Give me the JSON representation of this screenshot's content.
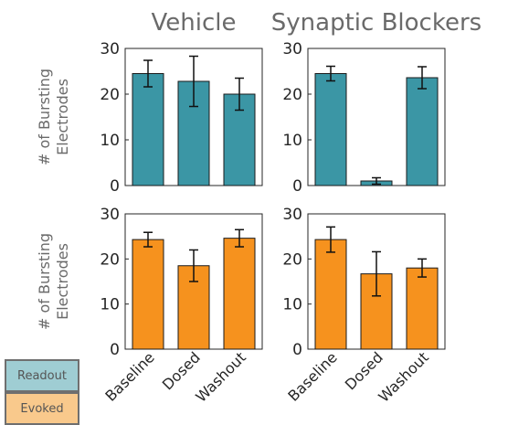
{
  "chart_data": {
    "type": "bar",
    "categories": [
      "Baseline",
      "Dosed",
      "Washout"
    ],
    "columns": [
      "Vehicle",
      "Synaptic Blockers"
    ],
    "ylabel": [
      "# of Bursting",
      "Electrodes"
    ],
    "ylim": [
      0,
      30
    ],
    "yticks": [
      0,
      10,
      20,
      30
    ],
    "rows": [
      {
        "name": "Readout",
        "color": "#3b96a5"
      },
      {
        "name": "Evoked",
        "color": "#f6921e"
      }
    ],
    "panels": [
      {
        "row": 0,
        "col": 0,
        "values": [
          24.5,
          22.8,
          20.0
        ],
        "errors": [
          2.9,
          5.5,
          3.5
        ]
      },
      {
        "row": 0,
        "col": 1,
        "values": [
          24.5,
          1.0,
          23.6
        ],
        "errors": [
          1.6,
          0.7,
          2.4
        ]
      },
      {
        "row": 1,
        "col": 0,
        "values": [
          24.3,
          18.5,
          24.6
        ],
        "errors": [
          1.6,
          3.5,
          1.9
        ]
      },
      {
        "row": 1,
        "col": 1,
        "values": [
          24.3,
          16.7,
          18.0
        ],
        "errors": [
          2.8,
          4.9,
          2.0
        ]
      }
    ]
  },
  "legend": {
    "readout": "Readout",
    "evoked": "Evoked",
    "readout_color": "#9fcdd3",
    "evoked_color": "#f9c98c"
  }
}
